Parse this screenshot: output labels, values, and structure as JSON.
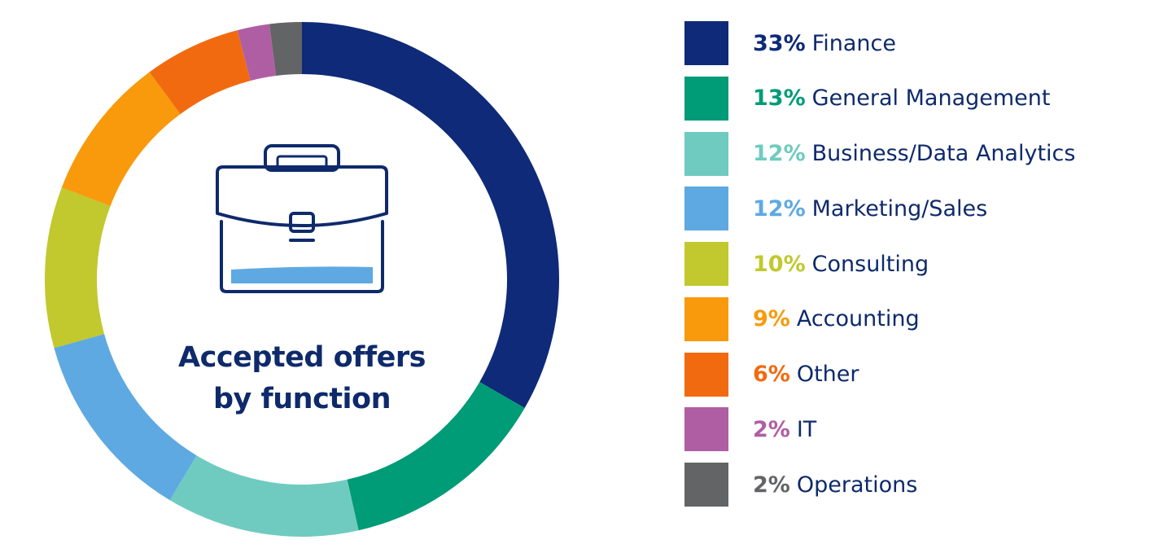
{
  "chart_data": {
    "type": "pie",
    "title": "Accepted offers by function",
    "title_lines": [
      "Accepted offers",
      "by function"
    ],
    "donut": true,
    "legend_position": "right",
    "slices": [
      {
        "label": "Finance",
        "value": 33,
        "pct_label": "33%",
        "color": "#0e2a78"
      },
      {
        "label": "General Management",
        "value": 13,
        "pct_label": "13%",
        "color": "#009b77"
      },
      {
        "label": "Business/Data Analytics",
        "value": 12,
        "pct_label": "12%",
        "color": "#6fcbbf"
      },
      {
        "label": "Marketing/Sales",
        "value": 12,
        "pct_label": "12%",
        "color": "#5ea9e2"
      },
      {
        "label": "Consulting",
        "value": 10,
        "pct_label": "10%",
        "color": "#c1c92e"
      },
      {
        "label": "Accounting",
        "value": 9,
        "pct_label": "9%",
        "color": "#f89a0c"
      },
      {
        "label": "Other",
        "value": 6,
        "pct_label": "6%",
        "color": "#f26a10"
      },
      {
        "label": "IT",
        "value": 2,
        "pct_label": "2%",
        "color": "#b05ea3"
      },
      {
        "label": "Operations",
        "value": 2,
        "pct_label": "2%",
        "color": "#636466"
      }
    ]
  },
  "icon": {
    "name": "briefcase-icon",
    "outline_color": "#0e2a6b",
    "accent_color": "#5ea9e2"
  }
}
